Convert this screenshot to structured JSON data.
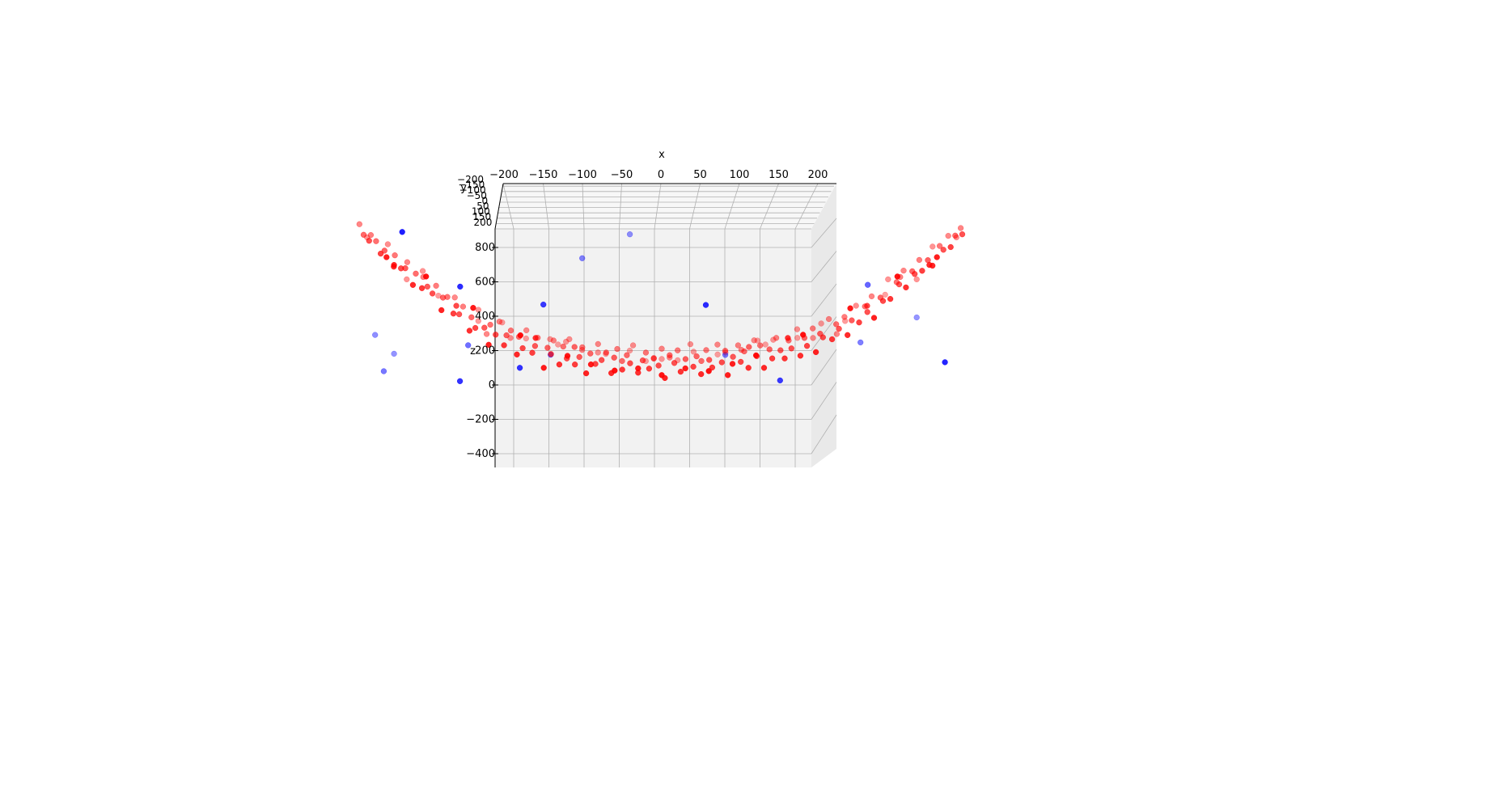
{
  "chart_data": {
    "type": "scatter",
    "projection": "3d",
    "view": "camera looking along +y, slightly from above (x horizontal, z vertical, y receding)",
    "title": "",
    "xlabel": "x",
    "ylabel": "y",
    "zlabel": "z",
    "x_ticks": [
      "−200",
      "−150",
      "−100",
      "−50",
      "0",
      "50",
      "100",
      "150",
      "200"
    ],
    "y_ticks": [
      "−200",
      "−150",
      "−100",
      "−50",
      "0",
      "50",
      "100",
      "150",
      "200"
    ],
    "z_ticks": [
      "−400",
      "−200",
      "0",
      "200",
      "400",
      "600",
      "800"
    ],
    "xlim": [
      -220,
      220
    ],
    "ylim": [
      -200,
      200
    ],
    "zlim": [
      -480,
      920
    ],
    "grid": true,
    "legend": "none",
    "colors": {
      "inliers": "#ff0000",
      "outliers": "#0000ff",
      "pane": "#f2f2f2",
      "grid": "#b0b0b0"
    },
    "series": [
      {
        "color": "#ff0000",
        "description_of_shape": "approximately z = 0.02*x^2 + y-dependent offset; paraboloid-like bowl with noise",
        "points": [
          [
            -190,
            120,
            800
          ],
          [
            -188,
            40,
            770
          ],
          [
            -185,
            -20,
            760
          ],
          [
            -183,
            100,
            740
          ],
          [
            -180,
            60,
            720
          ],
          [
            -178,
            -60,
            700
          ],
          [
            -175,
            20,
            680
          ],
          [
            -172,
            140,
            660
          ],
          [
            -170,
            -100,
            640
          ],
          [
            -168,
            80,
            620
          ],
          [
            -165,
            -40,
            600
          ],
          [
            -162,
            0,
            580
          ],
          [
            -160,
            110,
            560
          ],
          [
            -158,
            -120,
            540
          ],
          [
            -155,
            50,
            520
          ],
          [
            -152,
            -80,
            500
          ],
          [
            -150,
            150,
            480
          ],
          [
            -148,
            10,
            460
          ],
          [
            -145,
            -30,
            440
          ],
          [
            -142,
            90,
            420
          ],
          [
            -140,
            -140,
            400
          ],
          [
            -138,
            30,
            380
          ],
          [
            -135,
            70,
            360
          ],
          [
            -132,
            -70,
            340
          ],
          [
            -130,
            130,
            320
          ],
          [
            -128,
            -10,
            300
          ],
          [
            -125,
            100,
            280
          ],
          [
            -122,
            -110,
            260
          ],
          [
            -120,
            40,
            250
          ],
          [
            -118,
            -50,
            240
          ],
          [
            -115,
            160,
            220
          ],
          [
            -112,
            0,
            210
          ],
          [
            -110,
            -150,
            200
          ],
          [
            -108,
            60,
            190
          ],
          [
            -105,
            -20,
            180
          ],
          [
            -102,
            120,
            170
          ],
          [
            -100,
            -90,
            160
          ],
          [
            -98,
            20,
            150
          ],
          [
            -95,
            80,
            140
          ],
          [
            -92,
            -130,
            130
          ],
          [
            -90,
            50,
            120
          ],
          [
            -88,
            -40,
            110
          ],
          [
            -85,
            140,
            100
          ],
          [
            -82,
            -60,
            95
          ],
          [
            -80,
            10,
            90
          ],
          [
            -78,
            100,
            80
          ],
          [
            -75,
            -160,
            70
          ],
          [
            -72,
            30,
            65
          ],
          [
            -70,
            -20,
            60
          ],
          [
            -68,
            110,
            55
          ],
          [
            -65,
            -100,
            50
          ],
          [
            -62,
            70,
            45
          ],
          [
            -60,
            -30,
            40
          ],
          [
            -58,
            150,
            35
          ],
          [
            -55,
            -70,
            30
          ],
          [
            -52,
            0,
            28
          ],
          [
            -50,
            90,
            26
          ],
          [
            -48,
            -140,
            24
          ],
          [
            -45,
            40,
            22
          ],
          [
            -42,
            -50,
            20
          ],
          [
            -40,
            130,
            18
          ],
          [
            -38,
            -10,
            16
          ],
          [
            -35,
            60,
            14
          ],
          [
            -32,
            -120,
            12
          ],
          [
            -30,
            20,
            10
          ],
          [
            -28,
            100,
            8
          ],
          [
            -25,
            -80,
            6
          ],
          [
            -22,
            50,
            4
          ],
          [
            -20,
            -20,
            3
          ],
          [
            -18,
            140,
            2
          ],
          [
            -15,
            -100,
            1
          ],
          [
            -12,
            10,
            0
          ],
          [
            -10,
            80,
            -1
          ],
          [
            -8,
            -60,
            -2
          ],
          [
            -5,
            30,
            -3
          ],
          [
            -2,
            -30,
            -4
          ],
          [
            0,
            120,
            -5
          ],
          [
            2,
            -140,
            -4
          ],
          [
            5,
            60,
            -3
          ],
          [
            8,
            -10,
            -2
          ],
          [
            10,
            100,
            -1
          ],
          [
            12,
            -90,
            0
          ],
          [
            15,
            20,
            1
          ],
          [
            18,
            150,
            2
          ],
          [
            20,
            -50,
            3
          ],
          [
            22,
            40,
            4
          ],
          [
            25,
            -120,
            6
          ],
          [
            28,
            90,
            8
          ],
          [
            30,
            0,
            10
          ],
          [
            32,
            -70,
            12
          ],
          [
            35,
            130,
            14
          ],
          [
            38,
            -30,
            16
          ],
          [
            40,
            70,
            18
          ],
          [
            42,
            -150,
            20
          ],
          [
            45,
            10,
            22
          ],
          [
            48,
            110,
            24
          ],
          [
            50,
            -40,
            26
          ],
          [
            52,
            50,
            28
          ],
          [
            55,
            -100,
            30
          ],
          [
            58,
            140,
            35
          ],
          [
            60,
            -10,
            40
          ],
          [
            62,
            80,
            45
          ],
          [
            65,
            -130,
            50
          ],
          [
            68,
            30,
            55
          ],
          [
            70,
            -60,
            60
          ],
          [
            72,
            120,
            65
          ],
          [
            75,
            0,
            70
          ],
          [
            78,
            -90,
            80
          ],
          [
            80,
            60,
            90
          ],
          [
            82,
            -20,
            95
          ],
          [
            85,
            150,
            100
          ],
          [
            88,
            -110,
            110
          ],
          [
            90,
            40,
            120
          ],
          [
            92,
            -50,
            130
          ],
          [
            95,
            100,
            140
          ],
          [
            98,
            -140,
            150
          ],
          [
            100,
            20,
            160
          ],
          [
            102,
            -30,
            170
          ],
          [
            105,
            130,
            180
          ],
          [
            108,
            -80,
            190
          ],
          [
            110,
            50,
            200
          ],
          [
            112,
            -10,
            210
          ],
          [
            115,
            90,
            220
          ],
          [
            118,
            -120,
            240
          ],
          [
            120,
            10,
            250
          ],
          [
            122,
            140,
            260
          ],
          [
            125,
            -60,
            280
          ],
          [
            128,
            70,
            300
          ],
          [
            130,
            -20,
            320
          ],
          [
            132,
            110,
            340
          ],
          [
            135,
            -150,
            360
          ],
          [
            138,
            30,
            380
          ],
          [
            140,
            -40,
            400
          ],
          [
            142,
            160,
            420
          ],
          [
            145,
            -90,
            440
          ],
          [
            148,
            60,
            460
          ],
          [
            150,
            0,
            480
          ],
          [
            152,
            120,
            500
          ],
          [
            155,
            -110,
            520
          ],
          [
            158,
            40,
            540
          ],
          [
            160,
            -30,
            560
          ],
          [
            162,
            100,
            580
          ],
          [
            165,
            -70,
            600
          ],
          [
            168,
            20,
            620
          ],
          [
            170,
            150,
            640
          ],
          [
            172,
            -130,
            660
          ],
          [
            175,
            80,
            680
          ],
          [
            178,
            -10,
            700
          ],
          [
            180,
            130,
            720
          ],
          [
            183,
            -60,
            740
          ],
          [
            185,
            50,
            760
          ],
          [
            188,
            110,
            780
          ],
          [
            190,
            -20,
            800
          ],
          [
            -150,
            -180,
            620
          ],
          [
            -120,
            -170,
            430
          ],
          [
            -90,
            -190,
            280
          ],
          [
            -60,
            -175,
            150
          ],
          [
            -30,
            -185,
            70
          ],
          [
            0,
            -180,
            40
          ],
          [
            30,
            -190,
            70
          ],
          [
            60,
            -170,
            150
          ],
          [
            90,
            -185,
            280
          ],
          [
            120,
            -175,
            430
          ],
          [
            150,
            -180,
            620
          ],
          [
            -140,
            180,
            300
          ],
          [
            -100,
            185,
            120
          ],
          [
            -60,
            175,
            0
          ],
          [
            -20,
            190,
            -70
          ],
          [
            20,
            180,
            -70
          ],
          [
            60,
            185,
            0
          ],
          [
            100,
            175,
            120
          ],
          [
            140,
            190,
            300
          ],
          [
            -175,
            -150,
            720
          ],
          [
            -160,
            160,
            420
          ],
          [
            -70,
            170,
            20
          ],
          [
            -45,
            -160,
            90
          ],
          [
            45,
            -155,
            90
          ],
          [
            70,
            165,
            20
          ],
          [
            160,
            160,
            420
          ],
          [
            175,
            -150,
            720
          ],
          [
            -110,
            120,
            90
          ],
          [
            110,
            120,
            90
          ],
          [
            -80,
            -100,
            210
          ],
          [
            80,
            -100,
            210
          ],
          [
            -25,
            60,
            -40
          ],
          [
            25,
            60,
            -40
          ],
          [
            -15,
            -150,
            60
          ],
          [
            15,
            -150,
            60
          ],
          [
            -130,
            -40,
            370
          ],
          [
            130,
            -40,
            370
          ],
          [
            -55,
            30,
            70
          ],
          [
            55,
            30,
            70
          ],
          [
            -95,
            140,
            50
          ],
          [
            95,
            140,
            50
          ],
          [
            -40,
            160,
            -60
          ],
          [
            40,
            160,
            -60
          ],
          [
            0,
            170,
            -110
          ],
          [
            -10,
            190,
            -140
          ],
          [
            10,
            185,
            -130
          ],
          [
            -65,
            190,
            -30
          ],
          [
            65,
            190,
            -30
          ],
          [
            -35,
            200,
            -100
          ],
          [
            35,
            195,
            -100
          ],
          [
            -85,
            190,
            10
          ],
          [
            85,
            195,
            10
          ],
          [
            -115,
            170,
            140
          ],
          [
            115,
            170,
            140
          ],
          [
            -150,
            100,
            470
          ],
          [
            150,
            100,
            470
          ],
          [
            -170,
            -120,
            660
          ],
          [
            170,
            -120,
            660
          ],
          [
            -185,
            150,
            700
          ],
          [
            185,
            150,
            700
          ],
          [
            -5,
            140,
            -80
          ],
          [
            5,
            130,
            -70
          ],
          [
            -50,
            130,
            -20
          ],
          [
            50,
            130,
            -20
          ]
        ]
      },
      {
        "color": "#0000ff",
        "description_of_shape": "scattered outliers",
        "points": [
          [
            -165,
            -150,
            870
          ],
          [
            -20,
            150,
            720
          ],
          [
            -50,
            120,
            580
          ],
          [
            -128,
            -120,
            530
          ],
          [
            -75,
            -80,
            400
          ],
          [
            28,
            -120,
            420
          ],
          [
            130,
            30,
            460
          ],
          [
            -180,
            140,
            70
          ],
          [
            -122,
            60,
            60
          ],
          [
            -90,
            -100,
            30
          ],
          [
            -168,
            150,
            -60
          ],
          [
            -175,
            80,
            -120
          ],
          [
            -128,
            -100,
            -50
          ],
          [
            160,
            160,
            170
          ],
          [
            180,
            -140,
            90
          ],
          [
            125,
            100,
            50
          ],
          [
            75,
            -80,
            -60
          ],
          [
            40,
            100,
            -30
          ],
          [
            -70,
            60,
            0
          ]
        ]
      }
    ]
  }
}
